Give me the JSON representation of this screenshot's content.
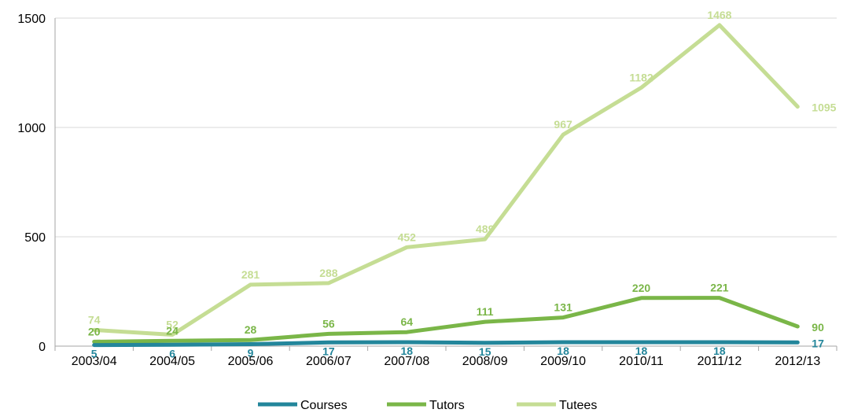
{
  "chart_data": {
    "type": "line",
    "categories": [
      "2003/04",
      "2004/05",
      "2005/06",
      "2006/07",
      "2007/08",
      "2008/09",
      "2009/10",
      "2010/11",
      "2011/12",
      "2012/13"
    ],
    "series": [
      {
        "name": "Courses",
        "color": "#23869B",
        "values": [
          5,
          6,
          9,
          17,
          18,
          15,
          18,
          18,
          18,
          17
        ]
      },
      {
        "name": "Tutors",
        "color": "#7AB648",
        "values": [
          20,
          24,
          28,
          56,
          64,
          111,
          131,
          220,
          221,
          90
        ]
      },
      {
        "name": "Tutees",
        "color": "#C5DD94",
        "values": [
          74,
          52,
          281,
          288,
          452,
          489,
          967,
          1182,
          1468,
          1095
        ]
      }
    ],
    "ylim": [
      0,
      1500
    ],
    "yticks": [
      0,
      500,
      1000,
      1500
    ],
    "grid": true,
    "legend_position": "bottom"
  }
}
